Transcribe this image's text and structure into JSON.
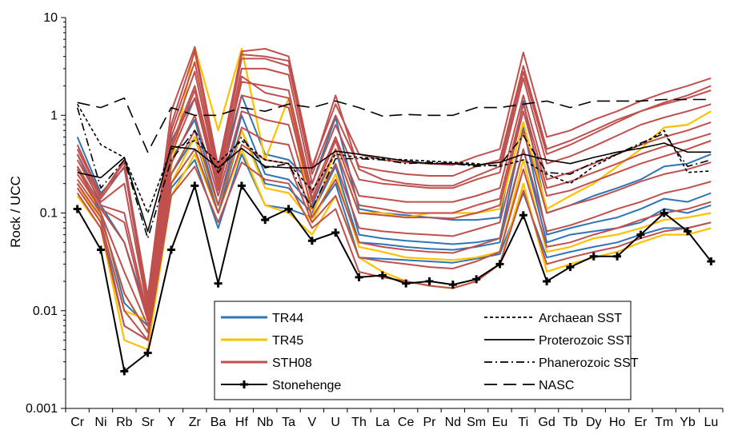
{
  "chart_data": {
    "type": "line",
    "title": "",
    "xlabel": "",
    "ylabel": "Rock / UCC",
    "yscale": "log",
    "ylim": [
      0.001,
      10
    ],
    "y_tick_labels": [
      "0.001",
      "0.01",
      "0.1",
      "1",
      "10"
    ],
    "categories": [
      "Cr",
      "Ni",
      "Rb",
      "Sr",
      "Y",
      "Zr",
      "Ba",
      "Hf",
      "Nb",
      "Ta",
      "V",
      "U",
      "Th",
      "La",
      "Ce",
      "Pr",
      "Nd",
      "Sm",
      "Eu",
      "Ti",
      "Gd",
      "Tb",
      "Dy",
      "Ho",
      "Er",
      "Tm",
      "Yb",
      "Lu"
    ],
    "grid": false,
    "legend_placement": "bottom-center",
    "colors": {
      "TR44": "#2e75b6",
      "TR45": "#ffc000",
      "STH08": "#c0504d",
      "reference": "#000000"
    },
    "legend": {
      "left": [
        {
          "name": "TR44",
          "style": "line-blue"
        },
        {
          "name": "TR45",
          "style": "line-yellow"
        },
        {
          "name": "STH08",
          "style": "line-red"
        },
        {
          "name": "Stonehenge",
          "style": "line-black-cross"
        }
      ],
      "right": [
        {
          "name": "Archaean SST",
          "style": "short-dash"
        },
        {
          "name": "Proterozoic SST",
          "style": "solid"
        },
        {
          "name": "Phanerozoic SST",
          "style": "dash-dot"
        },
        {
          "name": "NASC",
          "style": "long-dash"
        }
      ]
    },
    "series": [
      {
        "name": "Stonehenge",
        "group": "Stonehenge",
        "values": [
          0.11,
          0.042,
          0.0024,
          0.0037,
          0.042,
          0.19,
          0.019,
          0.19,
          0.085,
          0.11,
          0.052,
          0.063,
          0.022,
          0.023,
          0.019,
          0.02,
          0.0185,
          0.021,
          0.03,
          0.095,
          0.02,
          0.028,
          0.036,
          0.036,
          0.06,
          0.1,
          0.065,
          0.032
        ]
      },
      {
        "name": "Archaean SST",
        "group": "reference",
        "values": [
          1.3,
          0.5,
          0.37,
          0.1,
          0.45,
          0.55,
          0.33,
          0.55,
          0.35,
          0.32,
          0.17,
          0.4,
          0.37,
          0.36,
          0.35,
          0.34,
          0.33,
          0.32,
          0.3,
          0.35,
          0.25,
          0.2,
          0.3,
          0.4,
          0.5,
          0.7,
          0.26,
          0.27
        ]
      },
      {
        "name": "Proterozoic SST",
        "group": "reference",
        "values": [
          0.26,
          0.23,
          0.37,
          0.065,
          0.48,
          0.45,
          0.29,
          0.46,
          0.3,
          0.29,
          0.29,
          0.43,
          0.4,
          0.37,
          0.34,
          0.32,
          0.32,
          0.31,
          0.33,
          0.4,
          0.35,
          0.32,
          0.37,
          0.42,
          0.46,
          0.52,
          0.42,
          0.42
        ]
      },
      {
        "name": "Phanerozoic SST",
        "group": "reference",
        "values": [
          1.2,
          0.18,
          0.35,
          0.055,
          0.35,
          0.7,
          0.26,
          0.6,
          0.29,
          0.32,
          0.11,
          0.36,
          0.36,
          0.35,
          0.32,
          0.33,
          0.32,
          0.3,
          0.31,
          0.62,
          0.26,
          0.25,
          0.33,
          0.4,
          0.52,
          0.65,
          0.3,
          0.35
        ]
      },
      {
        "name": "NASC",
        "group": "reference",
        "values": [
          1.35,
          1.2,
          1.5,
          0.42,
          1.2,
          1.0,
          1.0,
          1.2,
          1.1,
          1.3,
          1.2,
          1.4,
          1.2,
          0.98,
          1.02,
          1.0,
          1.0,
          1.2,
          1.2,
          1.3,
          1.4,
          1.2,
          1.4,
          1.4,
          1.4,
          1.45,
          1.45,
          1.45
        ]
      },
      {
        "name": "",
        "group": "TR44",
        "values": [
          0.6,
          0.16,
          0.29,
          0.011,
          0.55,
          1.5,
          0.22,
          1.6,
          0.4,
          0.35,
          0.2,
          0.95,
          0.11,
          0.1,
          0.095,
          0.09,
          0.085,
          0.085,
          0.09,
          1.4,
          0.1,
          0.12,
          0.15,
          0.18,
          0.22,
          0.3,
          0.32,
          0.4
        ]
      },
      {
        "name": "",
        "group": "TR44",
        "values": [
          0.4,
          0.12,
          0.05,
          0.009,
          0.35,
          0.9,
          0.12,
          1.0,
          0.25,
          0.22,
          0.12,
          0.45,
          0.06,
          0.055,
          0.052,
          0.05,
          0.048,
          0.05,
          0.055,
          0.75,
          0.06,
          0.07,
          0.08,
          0.09,
          0.11,
          0.14,
          0.13,
          0.16
        ]
      },
      {
        "name": "",
        "group": "TR44",
        "values": [
          0.2,
          0.08,
          0.007,
          0.005,
          0.18,
          0.35,
          0.07,
          0.4,
          0.12,
          0.11,
          0.09,
          0.2,
          0.035,
          0.034,
          0.033,
          0.032,
          0.031,
          0.034,
          0.038,
          0.16,
          0.035,
          0.04,
          0.045,
          0.05,
          0.06,
          0.07,
          0.07,
          0.08
        ]
      },
      {
        "name": "",
        "group": "TR44",
        "values": [
          0.3,
          0.1,
          0.012,
          0.007,
          0.25,
          0.6,
          0.1,
          0.7,
          0.2,
          0.18,
          0.1,
          0.3,
          0.05,
          0.048,
          0.045,
          0.043,
          0.042,
          0.045,
          0.05,
          0.45,
          0.05,
          0.06,
          0.065,
          0.07,
          0.08,
          0.11,
          0.1,
          0.12
        ]
      },
      {
        "name": "",
        "group": "TR45",
        "values": [
          0.3,
          0.09,
          0.015,
          0.006,
          0.3,
          5.0,
          0.7,
          4.8,
          0.35,
          1.5,
          0.09,
          0.45,
          0.1,
          0.1,
          0.09,
          0.1,
          0.1,
          0.1,
          0.11,
          0.85,
          0.11,
          0.15,
          0.2,
          0.3,
          0.45,
          0.75,
          0.8,
          1.1
        ]
      },
      {
        "name": "",
        "group": "TR45",
        "values": [
          0.15,
          0.07,
          0.005,
          0.004,
          0.15,
          0.4,
          0.1,
          0.45,
          0.12,
          0.1,
          0.06,
          0.15,
          0.035,
          0.025,
          0.02,
          0.018,
          0.017,
          0.02,
          0.03,
          0.2,
          0.025,
          0.03,
          0.035,
          0.04,
          0.05,
          0.06,
          0.06,
          0.07
        ]
      },
      {
        "name": "",
        "group": "TR45",
        "values": [
          0.2,
          0.08,
          0.01,
          0.008,
          0.2,
          0.6,
          0.12,
          0.7,
          0.18,
          0.16,
          0.08,
          0.25,
          0.045,
          0.04,
          0.035,
          0.034,
          0.033,
          0.035,
          0.04,
          0.35,
          0.04,
          0.045,
          0.055,
          0.06,
          0.07,
          0.085,
          0.09,
          0.1
        ]
      },
      {
        "name": "",
        "group": "STH08",
        "values": [
          0.5,
          0.15,
          0.35,
          0.012,
          0.8,
          4.5,
          0.28,
          4.5,
          4.8,
          4.0,
          0.3,
          1.3,
          0.4,
          0.35,
          0.33,
          0.32,
          0.31,
          0.38,
          0.45,
          4.4,
          0.6,
          0.7,
          0.9,
          1.1,
          1.4,
          1.7,
          2.0,
          2.4
        ]
      },
      {
        "name": "",
        "group": "STH08",
        "values": [
          0.4,
          0.14,
          0.3,
          0.011,
          0.7,
          3.5,
          0.25,
          3.8,
          3.8,
          3.2,
          0.25,
          1.0,
          0.3,
          0.27,
          0.25,
          0.24,
          0.24,
          0.3,
          0.35,
          3.2,
          0.45,
          0.55,
          0.7,
          0.9,
          1.1,
          1.3,
          1.5,
          1.8
        ]
      },
      {
        "name": "",
        "group": "STH08",
        "values": [
          0.35,
          0.13,
          0.2,
          0.01,
          0.6,
          2.8,
          0.22,
          3.0,
          3.0,
          2.6,
          0.2,
          0.8,
          0.22,
          0.2,
          0.19,
          0.18,
          0.18,
          0.22,
          0.26,
          2.4,
          0.32,
          0.38,
          0.48,
          0.62,
          0.8,
          0.95,
          1.1,
          1.3
        ]
      },
      {
        "name": "",
        "group": "STH08",
        "values": [
          0.3,
          0.12,
          0.1,
          0.009,
          0.5,
          2.0,
          0.2,
          2.2,
          2.0,
          1.8,
          0.16,
          0.6,
          0.15,
          0.14,
          0.13,
          0.13,
          0.13,
          0.15,
          0.18,
          1.6,
          0.22,
          0.26,
          0.32,
          0.4,
          0.5,
          0.6,
          0.7,
          0.85
        ]
      },
      {
        "name": "",
        "group": "STH08",
        "values": [
          0.25,
          0.11,
          0.05,
          0.008,
          0.4,
          1.5,
          0.17,
          1.6,
          1.4,
          1.2,
          0.13,
          0.45,
          0.1,
          0.095,
          0.09,
          0.09,
          0.088,
          0.1,
          0.12,
          1.1,
          0.15,
          0.17,
          0.21,
          0.26,
          0.32,
          0.38,
          0.45,
          0.55
        ]
      },
      {
        "name": "",
        "group": "STH08",
        "values": [
          0.22,
          0.1,
          0.025,
          0.007,
          0.32,
          1.0,
          0.15,
          1.1,
          0.9,
          0.8,
          0.11,
          0.32,
          0.07,
          0.065,
          0.062,
          0.06,
          0.058,
          0.068,
          0.08,
          0.7,
          0.1,
          0.12,
          0.14,
          0.17,
          0.21,
          0.25,
          0.28,
          0.33
        ]
      },
      {
        "name": "",
        "group": "STH08",
        "values": [
          0.2,
          0.09,
          0.015,
          0.006,
          0.25,
          0.7,
          0.12,
          0.75,
          0.55,
          0.5,
          0.09,
          0.22,
          0.05,
          0.045,
          0.042,
          0.04,
          0.039,
          0.046,
          0.055,
          0.45,
          0.065,
          0.075,
          0.09,
          0.11,
          0.13,
          0.16,
          0.18,
          0.21
        ]
      },
      {
        "name": "",
        "group": "STH08",
        "values": [
          0.18,
          0.08,
          0.01,
          0.005,
          0.2,
          0.45,
          0.1,
          0.5,
          0.35,
          0.32,
          0.08,
          0.15,
          0.035,
          0.032,
          0.03,
          0.028,
          0.027,
          0.032,
          0.04,
          0.28,
          0.045,
          0.05,
          0.06,
          0.07,
          0.085,
          0.1,
          0.11,
          0.13
        ]
      },
      {
        "name": "",
        "group": "STH08",
        "values": [
          0.16,
          0.07,
          0.007,
          0.005,
          0.15,
          0.3,
          0.08,
          0.33,
          0.22,
          0.2,
          0.07,
          0.11,
          0.025,
          0.022,
          0.02,
          0.018,
          0.017,
          0.02,
          0.03,
          0.17,
          0.03,
          0.035,
          0.04,
          0.045,
          0.055,
          0.065,
          0.07,
          0.08
        ]
      },
      {
        "name": "",
        "group": "STH08",
        "values": [
          0.45,
          0.15,
          0.33,
          0.014,
          1.1,
          5.0,
          0.3,
          4.2,
          4.0,
          3.6,
          0.28,
          1.6,
          0.28,
          0.22,
          0.2,
          0.19,
          0.19,
          0.24,
          0.3,
          2.8,
          0.4,
          0.5,
          0.65,
          0.85,
          1.1,
          1.35,
          1.6,
          2.0
        ]
      },
      {
        "name": "",
        "group": "STH08",
        "values": [
          0.28,
          0.11,
          0.08,
          0.008,
          0.45,
          1.8,
          0.18,
          2.5,
          1.7,
          1.5,
          0.14,
          0.55,
          0.12,
          0.11,
          0.1,
          0.1,
          0.1,
          0.12,
          0.14,
          1.3,
          0.18,
          0.21,
          0.26,
          0.32,
          0.4,
          0.48,
          0.55,
          0.65
        ]
      }
    ]
  }
}
